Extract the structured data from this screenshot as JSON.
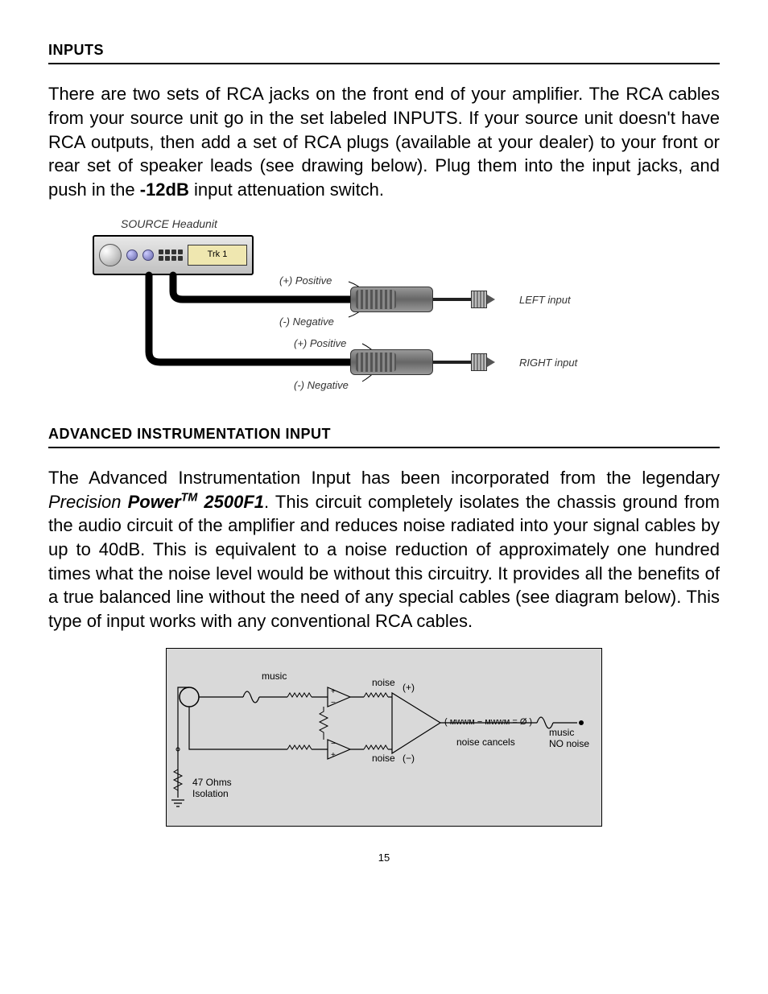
{
  "sections": {
    "inputs": {
      "header": "INPUTS",
      "body_parts": [
        {
          "t": "plain",
          "v": "There are two sets of RCA jacks on the front end of your amplifier. The RCA cables from your source unit go in the set labeled INPUTS. If your source unit doesn't have RCA outputs, then add a set of RCA plugs (available at your dealer) to your front or rear set of speaker leads (see drawing below). Plug them into the input jacks, and push in the "
        },
        {
          "t": "bold",
          "v": "-12dB"
        },
        {
          "t": "plain",
          "v": " input attenuation switch."
        }
      ]
    },
    "advanced": {
      "header": "ADVANCED INSTRUMENTATION INPUT",
      "body_parts": [
        {
          "t": "plain",
          "v": "The Advanced Instrumentation Input has been incorporated from the legendary "
        },
        {
          "t": "italic",
          "v": "Precision "
        },
        {
          "t": "bolditalic",
          "v": "Power"
        },
        {
          "t": "italic_sup",
          "v": "TM"
        },
        {
          "t": "bolditalic",
          "v": " 2500F1"
        },
        {
          "t": "plain",
          "v": ". This circuit completely isolates the chassis ground from the audio circuit of the amplifier and reduces noise radiated into your signal cables by up to 40dB. This is equivalent to a noise reduction of approximately one hundred times what the noise level would be without this circuitry. It provides all the benefits of a true balanced line without the need of any special cables (see diagram below). This type of input works with any conventional RCA cables."
        }
      ]
    }
  },
  "diagram1": {
    "caption": "SOURCE Headunit",
    "display_text": "Trk 1",
    "labels": {
      "pos_top": "(+) Positive",
      "neg_top": "(-) Negative",
      "pos_bot": "(+) Positive",
      "neg_bot": "(-) Negative",
      "left": "LEFT input",
      "right": "RIGHT input"
    }
  },
  "diagram2": {
    "labels": {
      "music1": "music",
      "noise1": "noise",
      "plus": "(+)",
      "minus": "(−)",
      "noise2": "noise",
      "cancel_expr": "( ᴍᴡᴡᴍ − ᴍᴡᴡᴍ = Ø )",
      "noise_cancels": "noise cancels",
      "music2": "music",
      "no_noise": "NO noise",
      "isolation": "47 Ohms",
      "isolation2": "Isolation"
    },
    "colors": {
      "bg": "#d9d9d9",
      "stroke": "#000000"
    }
  },
  "page_number": "15"
}
